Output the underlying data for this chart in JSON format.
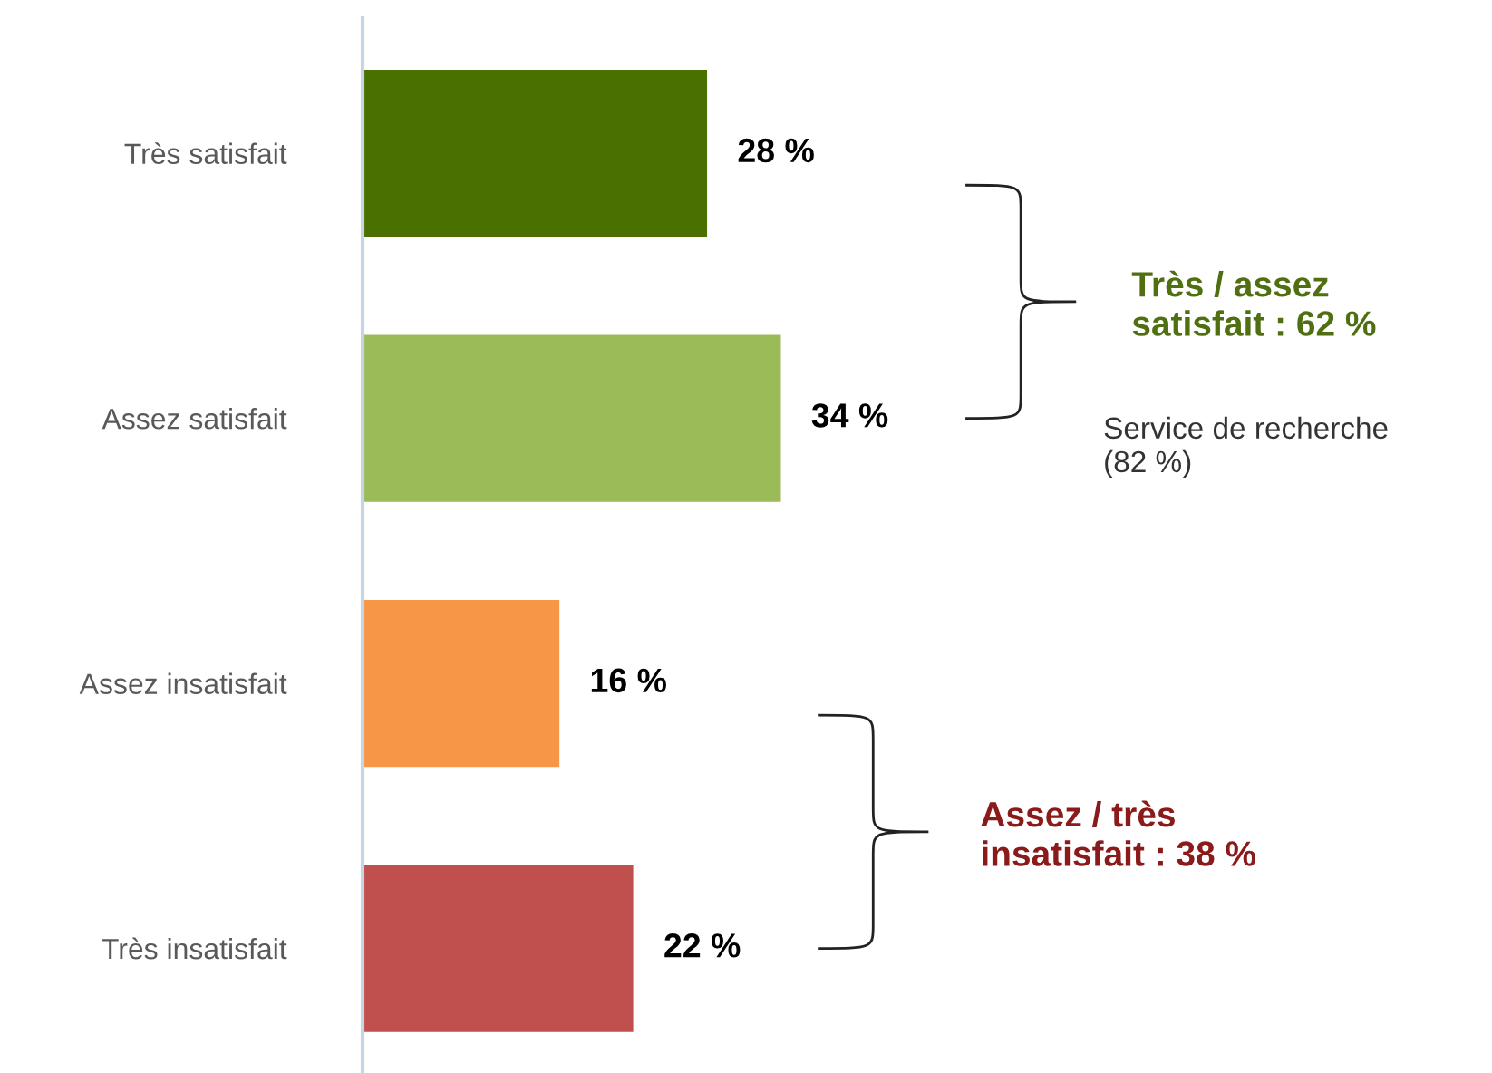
{
  "chart_data": {
    "type": "bar",
    "orientation": "horizontal",
    "categories": [
      "Très satisfait",
      "Assez satisfait",
      "Assez insatisfait",
      "Très insatisfait"
    ],
    "values": [
      28,
      34,
      16,
      22
    ],
    "colors": [
      "#4a7000",
      "#9bbb59",
      "#f79646",
      "#c0504d"
    ],
    "value_labels": [
      "28 %",
      "34 %",
      "16 %",
      "22 %"
    ],
    "annotations": [
      "Très / assez\nsatisfait : 62 %",
      "Service de recherche\n(82 %)",
      "Assez / très\ninsatisfait : 38 %"
    ],
    "grid": false,
    "legend": false
  }
}
